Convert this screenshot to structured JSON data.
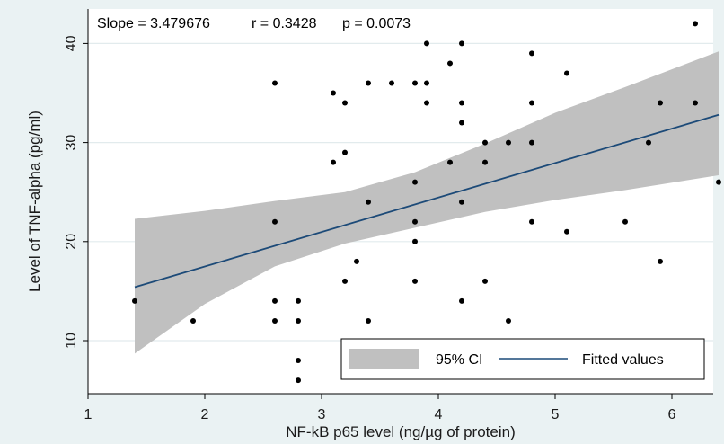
{
  "chart_data": {
    "type": "scatter",
    "title": "",
    "annotations": {
      "slope": "Slope = 3.479676",
      "r": "r = 0.3428",
      "p": "p = 0.0073"
    },
    "xlabel": "NF-kB p65 level (ng/µg of protein)",
    "ylabel": "Level of TNF-alpha (pg/ml)",
    "xlim": [
      1,
      6.45
    ],
    "ylim": [
      5,
      43
    ],
    "xticks": [
      "1",
      "2",
      "3",
      "4",
      "5",
      "6"
    ],
    "yticks": [
      "10",
      "20",
      "30",
      "40"
    ],
    "grid": true,
    "legend_position": "bottom-right",
    "colors": {
      "plot_background": "#ffffff",
      "figure_background": "#eaf2f3",
      "grid": "#e2ebed",
      "ci_band": "#c0c0c0",
      "fit_line": "#1c4a78",
      "points": "#000000"
    },
    "series": [
      {
        "name": "95% CI",
        "kind": "band",
        "x": [
          1.4,
          2.0,
          2.6,
          3.2,
          3.8,
          4.4,
          5.0,
          5.6,
          6.4
        ],
        "lower": [
          8.7,
          13.7,
          17.5,
          19.8,
          21.4,
          23.0,
          24.2,
          25.2,
          26.7
        ],
        "upper": [
          22.3,
          23.1,
          24.1,
          25.0,
          27.0,
          29.9,
          33.0,
          35.6,
          39.2
        ]
      },
      {
        "name": "Fitted values",
        "kind": "line",
        "x": [
          1.4,
          6.4
        ],
        "y": [
          15.4,
          32.8
        ]
      },
      {
        "name": "observations",
        "kind": "points",
        "points": [
          [
            1.4,
            14
          ],
          [
            1.9,
            12
          ],
          [
            2.6,
            36
          ],
          [
            2.6,
            22
          ],
          [
            2.6,
            14
          ],
          [
            2.6,
            12
          ],
          [
            2.8,
            14
          ],
          [
            2.8,
            12
          ],
          [
            2.8,
            8
          ],
          [
            2.8,
            6
          ],
          [
            3.1,
            35
          ],
          [
            3.1,
            28
          ],
          [
            3.2,
            34
          ],
          [
            3.2,
            29
          ],
          [
            3.2,
            16
          ],
          [
            3.3,
            18
          ],
          [
            3.4,
            36
          ],
          [
            3.4,
            24
          ],
          [
            3.4,
            12
          ],
          [
            3.6,
            36
          ],
          [
            3.8,
            36
          ],
          [
            3.8,
            26
          ],
          [
            3.8,
            22
          ],
          [
            3.8,
            20
          ],
          [
            3.8,
            16
          ],
          [
            3.9,
            40
          ],
          [
            3.9,
            36
          ],
          [
            3.9,
            34
          ],
          [
            4.1,
            38
          ],
          [
            4.1,
            28
          ],
          [
            4.2,
            40
          ],
          [
            4.2,
            34
          ],
          [
            4.2,
            32
          ],
          [
            4.2,
            24
          ],
          [
            4.2,
            14
          ],
          [
            4.4,
            30
          ],
          [
            4.4,
            28
          ],
          [
            4.4,
            16
          ],
          [
            4.6,
            30
          ],
          [
            4.6,
            12
          ],
          [
            4.8,
            39
          ],
          [
            4.8,
            34
          ],
          [
            4.8,
            30
          ],
          [
            4.8,
            22
          ],
          [
            5.1,
            37
          ],
          [
            5.1,
            21
          ],
          [
            5.6,
            22
          ],
          [
            5.8,
            30
          ],
          [
            5.9,
            34
          ],
          [
            5.9,
            18
          ],
          [
            6.2,
            42
          ],
          [
            6.2,
            34
          ],
          [
            6.4,
            26
          ]
        ]
      }
    ]
  }
}
